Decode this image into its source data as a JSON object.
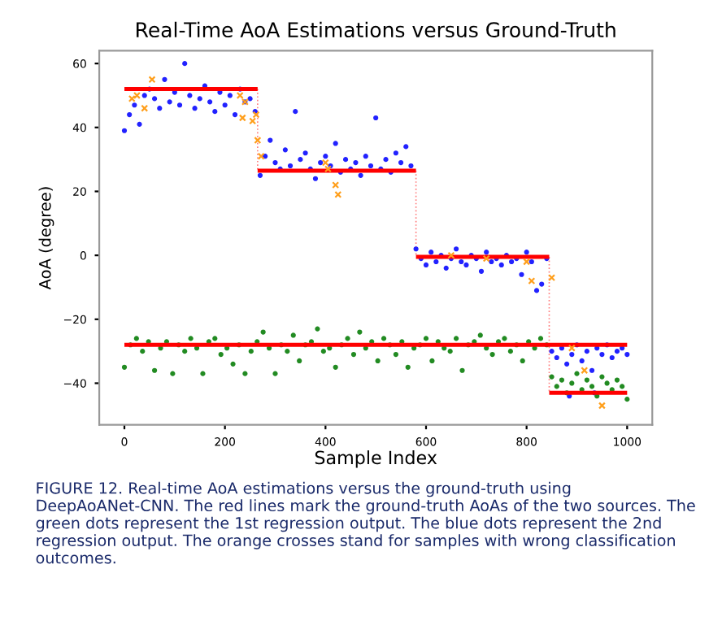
{
  "chart_data": {
    "type": "scatter",
    "title": "Real-Time AoA Estimations versus Ground-Truth",
    "xlabel": "Sample Index",
    "ylabel": "AoA (degree)",
    "xlim": [
      -50,
      1050
    ],
    "xticks": [
      0,
      200,
      400,
      600,
      800,
      1000
    ],
    "ylim": [
      -53,
      64
    ],
    "yticks": [
      -40,
      -20,
      0,
      20,
      40,
      60
    ],
    "grid": false,
    "legend": false,
    "series": [
      {
        "marker": "circle",
        "color": "#2222ff",
        "x": [
          0,
          10,
          20,
          30,
          40,
          50,
          60,
          70,
          80,
          90,
          100,
          110,
          120,
          130,
          140,
          150,
          160,
          170,
          180,
          190,
          200,
          210,
          220,
          230,
          240,
          250,
          260,
          270,
          280,
          290,
          300,
          310,
          320,
          330,
          340,
          350,
          360,
          370,
          380,
          390,
          400,
          410,
          420,
          430,
          440,
          450,
          460,
          470,
          480,
          490,
          500,
          510,
          520,
          530,
          540,
          550,
          560,
          570,
          580,
          590,
          600,
          610,
          620,
          630,
          640,
          650,
          660,
          670,
          680,
          690,
          700,
          710,
          720,
          730,
          740,
          750,
          760,
          770,
          780,
          790,
          800,
          810,
          820,
          830,
          840,
          850,
          860,
          870,
          880,
          890,
          900,
          910,
          920,
          930,
          940,
          950,
          960,
          970,
          980,
          990,
          1000,
          885,
          935
        ],
        "values": [
          39,
          44,
          47,
          41,
          50,
          52,
          49,
          46,
          55,
          48,
          51,
          47,
          60,
          50,
          46,
          49,
          53,
          48,
          45,
          51,
          47,
          50,
          44,
          52,
          48,
          49,
          45,
          25,
          31,
          36,
          29,
          27,
          33,
          28,
          45,
          30,
          32,
          27,
          24,
          29,
          31,
          28,
          35,
          26,
          30,
          27,
          29,
          25,
          31,
          28,
          43,
          27,
          30,
          26,
          32,
          29,
          34,
          28,
          2,
          -1,
          -3,
          1,
          -2,
          0,
          -4,
          -1,
          2,
          -2,
          -3,
          0,
          -1,
          -5,
          1,
          -2,
          -1,
          -3,
          0,
          -2,
          -1,
          -6,
          1,
          -2,
          -11,
          -9,
          -1,
          -30,
          -32,
          -29,
          -34,
          -31,
          -28,
          -33,
          -30,
          -36,
          -29,
          -31,
          -28,
          -32,
          -30,
          -29,
          -31,
          -44,
          -43
        ]
      },
      {
        "marker": "circle",
        "color": "#228b22",
        "x": [
          0,
          12,
          24,
          36,
          48,
          60,
          72,
          84,
          96,
          108,
          120,
          132,
          144,
          156,
          168,
          180,
          192,
          204,
          216,
          228,
          240,
          252,
          264,
          276,
          288,
          300,
          312,
          324,
          336,
          348,
          360,
          372,
          384,
          396,
          408,
          420,
          432,
          444,
          456,
          468,
          480,
          492,
          504,
          516,
          528,
          540,
          552,
          564,
          576,
          588,
          600,
          612,
          624,
          636,
          648,
          660,
          672,
          684,
          696,
          708,
          720,
          732,
          744,
          756,
          768,
          780,
          792,
          804,
          816,
          828,
          840,
          850,
          860,
          870,
          880,
          890,
          900,
          910,
          920,
          930,
          940,
          950,
          960,
          970,
          980,
          990,
          1000
        ],
        "values": [
          -35,
          -28,
          -26,
          -30,
          -27,
          -36,
          -29,
          -27,
          -37,
          -28,
          -30,
          -26,
          -29,
          -37,
          -27,
          -26,
          -31,
          -29,
          -34,
          -28,
          -37,
          -30,
          -27,
          -24,
          -29,
          -37,
          -28,
          -30,
          -25,
          -33,
          -28,
          -27,
          -23,
          -30,
          -29,
          -35,
          -28,
          -26,
          -31,
          -24,
          -29,
          -27,
          -33,
          -26,
          -28,
          -31,
          -27,
          -35,
          -29,
          -28,
          -26,
          -33,
          -27,
          -29,
          -30,
          -26,
          -36,
          -28,
          -27,
          -25,
          -29,
          -31,
          -27,
          -26,
          -30,
          -28,
          -33,
          -27,
          -29,
          -26,
          -28,
          -38,
          -41,
          -39,
          -43,
          -40,
          -37,
          -42,
          -39,
          -41,
          -44,
          -38,
          -40,
          -42,
          -39,
          -41,
          -45
        ]
      },
      {
        "marker": "cross",
        "color": "#ff9f1c",
        "x": [
          15,
          25,
          40,
          55,
          230,
          235,
          240,
          255,
          262,
          265,
          272,
          400,
          405,
          420,
          425,
          650,
          720,
          800,
          810,
          850,
          890,
          915,
          950
        ],
        "values": [
          49,
          50,
          46,
          55,
          50,
          43,
          48,
          42,
          44,
          36,
          31,
          29,
          27,
          22,
          19,
          0,
          -1,
          -2,
          -8,
          -7,
          -29,
          -36,
          -47
        ]
      },
      {
        "type": "step",
        "color": "#ff0000",
        "x": [
          0,
          265,
          580,
          845,
          1000
        ],
        "values": [
          52,
          26.5,
          -0.5,
          -43,
          -43
        ]
      },
      {
        "type": "step",
        "color": "#ff0000",
        "x": [
          0,
          1000
        ],
        "values": [
          -28,
          -28
        ]
      }
    ],
    "annotations": [
      "FIGURE 12. Real-time AoA estimations versus the ground-truth using DeepAoANet-CNN. The red lines mark the ground-truth AoAs of the two sources. The green dots represent the 1st regression output. The blue dots represent the 2nd regression output. The orange crosses stand for samples with wrong classification outcomes."
    ]
  }
}
